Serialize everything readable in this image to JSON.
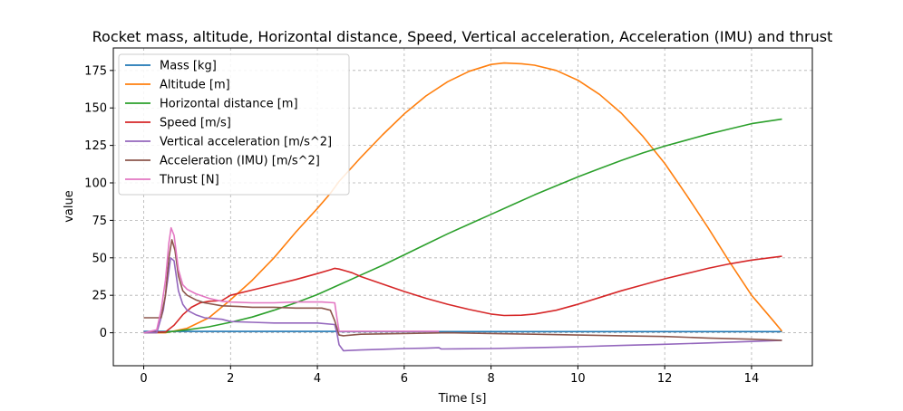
{
  "chart_data": {
    "type": "line",
    "title": "Rocket mass, altitude, Horizontal distance, Speed, Vertical acceleration, Acceleration (IMU) and thrust",
    "xlabel": "Time [s]",
    "ylabel": "value",
    "xlim": [
      -0.7,
      15.4
    ],
    "ylim": [
      -22,
      190
    ],
    "xticks": [
      0,
      2,
      4,
      6,
      8,
      10,
      12,
      14
    ],
    "yticks": [
      0,
      25,
      50,
      75,
      100,
      125,
      150,
      175
    ],
    "grid": true,
    "grid_style": "dashed",
    "legend_position": "top-left",
    "series": [
      {
        "name": "Mass [kg]",
        "color": "#1f77b4",
        "points": [
          [
            0,
            0.9
          ],
          [
            4.4,
            0.9
          ],
          [
            4.5,
            0.8
          ],
          [
            14.7,
            0.8
          ]
        ]
      },
      {
        "name": "Altitude [m]",
        "color": "#ff7f0e",
        "points": [
          [
            0,
            0
          ],
          [
            0.5,
            0
          ],
          [
            1,
            3
          ],
          [
            1.5,
            10
          ],
          [
            2,
            22
          ],
          [
            2.5,
            35
          ],
          [
            3,
            50
          ],
          [
            3.5,
            67
          ],
          [
            4,
            83
          ],
          [
            4.3,
            93
          ],
          [
            4.5,
            101
          ],
          [
            5,
            117
          ],
          [
            5.5,
            132
          ],
          [
            6,
            146
          ],
          [
            6.5,
            158
          ],
          [
            7,
            167.5
          ],
          [
            7.5,
            174.5
          ],
          [
            8,
            179
          ],
          [
            8.3,
            180
          ],
          [
            8.7,
            179.5
          ],
          [
            9,
            178.5
          ],
          [
            9.5,
            175
          ],
          [
            10,
            168.5
          ],
          [
            10.5,
            159
          ],
          [
            11,
            146.5
          ],
          [
            11.5,
            131
          ],
          [
            12,
            113
          ],
          [
            12.5,
            92
          ],
          [
            13,
            70
          ],
          [
            13.5,
            47
          ],
          [
            14,
            25
          ],
          [
            14.5,
            8
          ],
          [
            14.7,
            1
          ]
        ]
      },
      {
        "name": "Horizontal distance [m]",
        "color": "#2ca02c",
        "points": [
          [
            0,
            0
          ],
          [
            0.5,
            0.3
          ],
          [
            1,
            2
          ],
          [
            1.5,
            4
          ],
          [
            2,
            7
          ],
          [
            2.5,
            10.5
          ],
          [
            3,
            15
          ],
          [
            3.5,
            20
          ],
          [
            4,
            25.5
          ],
          [
            4.5,
            32
          ],
          [
            5,
            38.5
          ],
          [
            5.5,
            45
          ],
          [
            6,
            52
          ],
          [
            6.5,
            59
          ],
          [
            7,
            66
          ],
          [
            7.5,
            72.5
          ],
          [
            8,
            79
          ],
          [
            8.5,
            85.5
          ],
          [
            9,
            92
          ],
          [
            9.5,
            98
          ],
          [
            10,
            104
          ],
          [
            10.5,
            109.5
          ],
          [
            11,
            115
          ],
          [
            11.5,
            120
          ],
          [
            12,
            124.5
          ],
          [
            12.5,
            128.5
          ],
          [
            13,
            132.5
          ],
          [
            13.5,
            136
          ],
          [
            14,
            139.5
          ],
          [
            14.7,
            142.5
          ]
        ]
      },
      {
        "name": "Speed [m/s]",
        "color": "#d62728",
        "points": [
          [
            0,
            0
          ],
          [
            0.5,
            0.5
          ],
          [
            0.7,
            5
          ],
          [
            0.9,
            12
          ],
          [
            1.1,
            17
          ],
          [
            1.3,
            20
          ],
          [
            1.5,
            21
          ],
          [
            1.8,
            21.5
          ],
          [
            2,
            25
          ],
          [
            2.5,
            28.5
          ],
          [
            3,
            32
          ],
          [
            3.5,
            35.5
          ],
          [
            4,
            39.5
          ],
          [
            4.3,
            42
          ],
          [
            4.4,
            43
          ],
          [
            4.5,
            42.5
          ],
          [
            4.8,
            40
          ],
          [
            5,
            37.5
          ],
          [
            5.5,
            32.5
          ],
          [
            6,
            27.5
          ],
          [
            6.5,
            23
          ],
          [
            7,
            19
          ],
          [
            7.5,
            15.5
          ],
          [
            8,
            12.5
          ],
          [
            8.3,
            11.5
          ],
          [
            8.7,
            11.7
          ],
          [
            9,
            12.5
          ],
          [
            9.5,
            15
          ],
          [
            10,
            19
          ],
          [
            10.5,
            23.5
          ],
          [
            11,
            28
          ],
          [
            11.5,
            32
          ],
          [
            12,
            36
          ],
          [
            12.5,
            39.5
          ],
          [
            13,
            43
          ],
          [
            13.5,
            46
          ],
          [
            14,
            48.5
          ],
          [
            14.7,
            51
          ]
        ]
      },
      {
        "name": "Vertical acceleration [m/s^2]",
        "color": "#9467bd",
        "points": [
          [
            0,
            0
          ],
          [
            0.3,
            0
          ],
          [
            0.45,
            15
          ],
          [
            0.55,
            35
          ],
          [
            0.62,
            50
          ],
          [
            0.7,
            48
          ],
          [
            0.8,
            28
          ],
          [
            0.9,
            19
          ],
          [
            1,
            15
          ],
          [
            1.2,
            12
          ],
          [
            1.4,
            10
          ],
          [
            1.6,
            9.5
          ],
          [
            1.8,
            9
          ],
          [
            2,
            7.5
          ],
          [
            2.5,
            7
          ],
          [
            3,
            6.5
          ],
          [
            3.5,
            6.5
          ],
          [
            4,
            6.5
          ],
          [
            4.4,
            5.5
          ],
          [
            4.45,
            0
          ],
          [
            4.5,
            -8
          ],
          [
            4.6,
            -12
          ],
          [
            5,
            -11.5
          ],
          [
            5.5,
            -11
          ],
          [
            6,
            -10.5
          ],
          [
            6.5,
            -10.3
          ],
          [
            6.8,
            -10
          ],
          [
            6.85,
            -10.8
          ],
          [
            8,
            -10.5
          ],
          [
            9,
            -10
          ],
          [
            10,
            -9.3
          ],
          [
            11,
            -8.5
          ],
          [
            12,
            -7.7
          ],
          [
            13,
            -6.8
          ],
          [
            14,
            -5.8
          ],
          [
            14.7,
            -5
          ]
        ]
      },
      {
        "name": "Acceleration (IMU) [m/s^2]",
        "color": "#8c564b",
        "points": [
          [
            0,
            10
          ],
          [
            0.4,
            10
          ],
          [
            0.5,
            25
          ],
          [
            0.58,
            50
          ],
          [
            0.65,
            62
          ],
          [
            0.72,
            55
          ],
          [
            0.8,
            38
          ],
          [
            0.9,
            28
          ],
          [
            1,
            25
          ],
          [
            1.2,
            22
          ],
          [
            1.4,
            20
          ],
          [
            1.8,
            18
          ],
          [
            2.2,
            17.5
          ],
          [
            2.5,
            17
          ],
          [
            3,
            17
          ],
          [
            3.5,
            16.5
          ],
          [
            4.1,
            16.5
          ],
          [
            4.3,
            15
          ],
          [
            4.4,
            8
          ],
          [
            4.5,
            -1.5
          ],
          [
            4.6,
            -2
          ],
          [
            5,
            -1
          ],
          [
            6,
            -0.5
          ],
          [
            7,
            0
          ],
          [
            8,
            -0.5
          ],
          [
            9,
            -1
          ],
          [
            10,
            -1.5
          ],
          [
            11,
            -2
          ],
          [
            12,
            -2.5
          ],
          [
            13,
            -3.5
          ],
          [
            14,
            -4.3
          ],
          [
            14.7,
            -5
          ]
        ]
      },
      {
        "name": "Thrust [N]",
        "color": "#e377c2",
        "points": [
          [
            0,
            0
          ],
          [
            0.3,
            2
          ],
          [
            0.4,
            15
          ],
          [
            0.5,
            35
          ],
          [
            0.58,
            60
          ],
          [
            0.63,
            70
          ],
          [
            0.7,
            65
          ],
          [
            0.8,
            42
          ],
          [
            0.9,
            32
          ],
          [
            1,
            29
          ],
          [
            1.2,
            26
          ],
          [
            1.5,
            23
          ],
          [
            1.8,
            21
          ],
          [
            2,
            20.5
          ],
          [
            2.5,
            20
          ],
          [
            3,
            20
          ],
          [
            3.5,
            20.5
          ],
          [
            4.1,
            20.5
          ],
          [
            4.4,
            20
          ],
          [
            4.45,
            10
          ],
          [
            4.5,
            1
          ],
          [
            5,
            1
          ],
          [
            6,
            1
          ],
          [
            6.8,
            1
          ]
        ]
      }
    ]
  }
}
